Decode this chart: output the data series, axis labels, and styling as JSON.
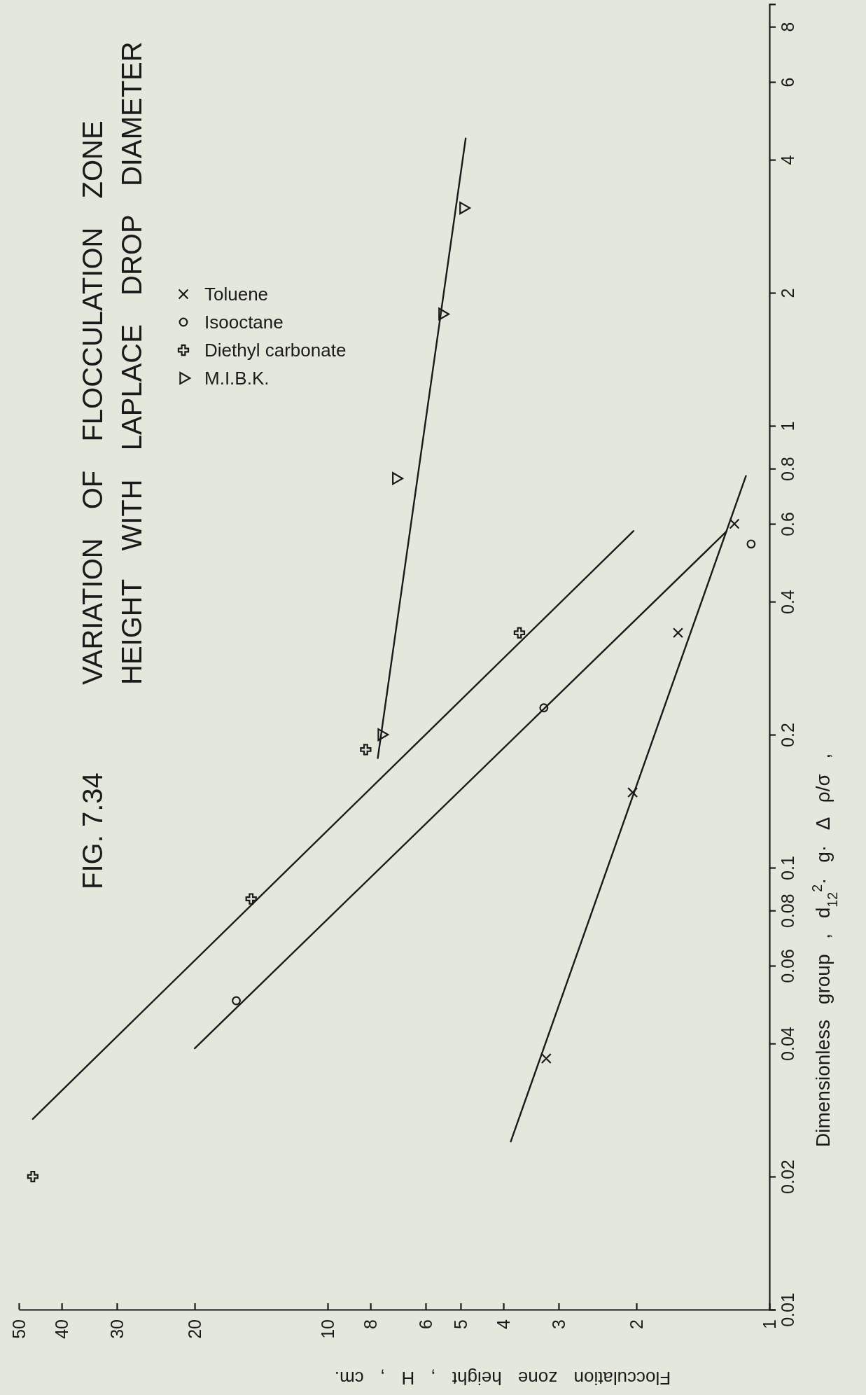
{
  "chart_data": {
    "type": "scatter",
    "title": "FIG. 7.34",
    "subtitle": "VARIATION OF FLOCCULATION ZONE HEIGHT WITH LAPLACE DROP DIAMETER",
    "ylabel": "Dimensionless group ,  d$_{12}$$^{2}$· g· Δ ρ/σ ,",
    "xlabel": "Flocculation zone height , H , cm.",
    "log": "xy",
    "ylim": [
      0.01,
      9
    ],
    "xlim": [
      50,
      1
    ],
    "yticks": [
      0.01,
      0.02,
      0.04,
      0.06,
      0.08,
      0.1,
      0.2,
      0.4,
      0.6,
      0.8,
      1,
      2,
      4,
      6,
      8
    ],
    "xticks": [
      1,
      2,
      3,
      4,
      5,
      6,
      8,
      10,
      20,
      30,
      40,
      50
    ],
    "legend": "top left",
    "series": [
      {
        "name": "Toluene",
        "color": "#1a1a1a",
        "marker": "x",
        "values": [
          0.037,
          0.148,
          0.34,
          0.6
        ],
        "x": [
          3.2,
          2.04,
          1.61,
          1.2
        ]
      },
      {
        "name": "Isooctane",
        "color": "#1a1a1a",
        "marker": "circle",
        "values": [
          0.05,
          0.23,
          0.54
        ],
        "x": [
          16.1,
          3.24,
          1.1
        ]
      },
      {
        "name": "Diethyl carbonate",
        "color": "#1a1a1a",
        "marker": "cross",
        "values": [
          0.02,
          0.085,
          0.185,
          0.34
        ],
        "x": [
          46.5,
          14.9,
          8.2,
          3.68
        ]
      },
      {
        "name": "M.I.B.K.",
        "color": "#1a1a1a",
        "marker": "triangle",
        "values": [
          0.2,
          0.76,
          1.79,
          3.11
        ],
        "x": [
          7.55,
          7.0,
          5.5,
          4.93
        ]
      },
      {
        "type": "line",
        "color": "#1a1a1a",
        "marker": "none",
        "values": [
          0.024,
          0.77
        ],
        "x": [
          3.85,
          1.13
        ]
      },
      {
        "type": "line",
        "color": "#1a1a1a",
        "marker": "none",
        "values": [
          0.039,
          0.577
        ],
        "x": [
          20,
          1.25
        ]
      },
      {
        "type": "line",
        "color": "#1a1a1a",
        "marker": "none",
        "values": [
          0.027,
          0.578
        ],
        "x": [
          46.5,
          2.03
        ]
      },
      {
        "type": "line",
        "color": "#1a1a1a",
        "marker": "none",
        "values": [
          0.177,
          4.47
        ],
        "x": [
          7.7,
          4.87
        ]
      }
    ]
  }
}
